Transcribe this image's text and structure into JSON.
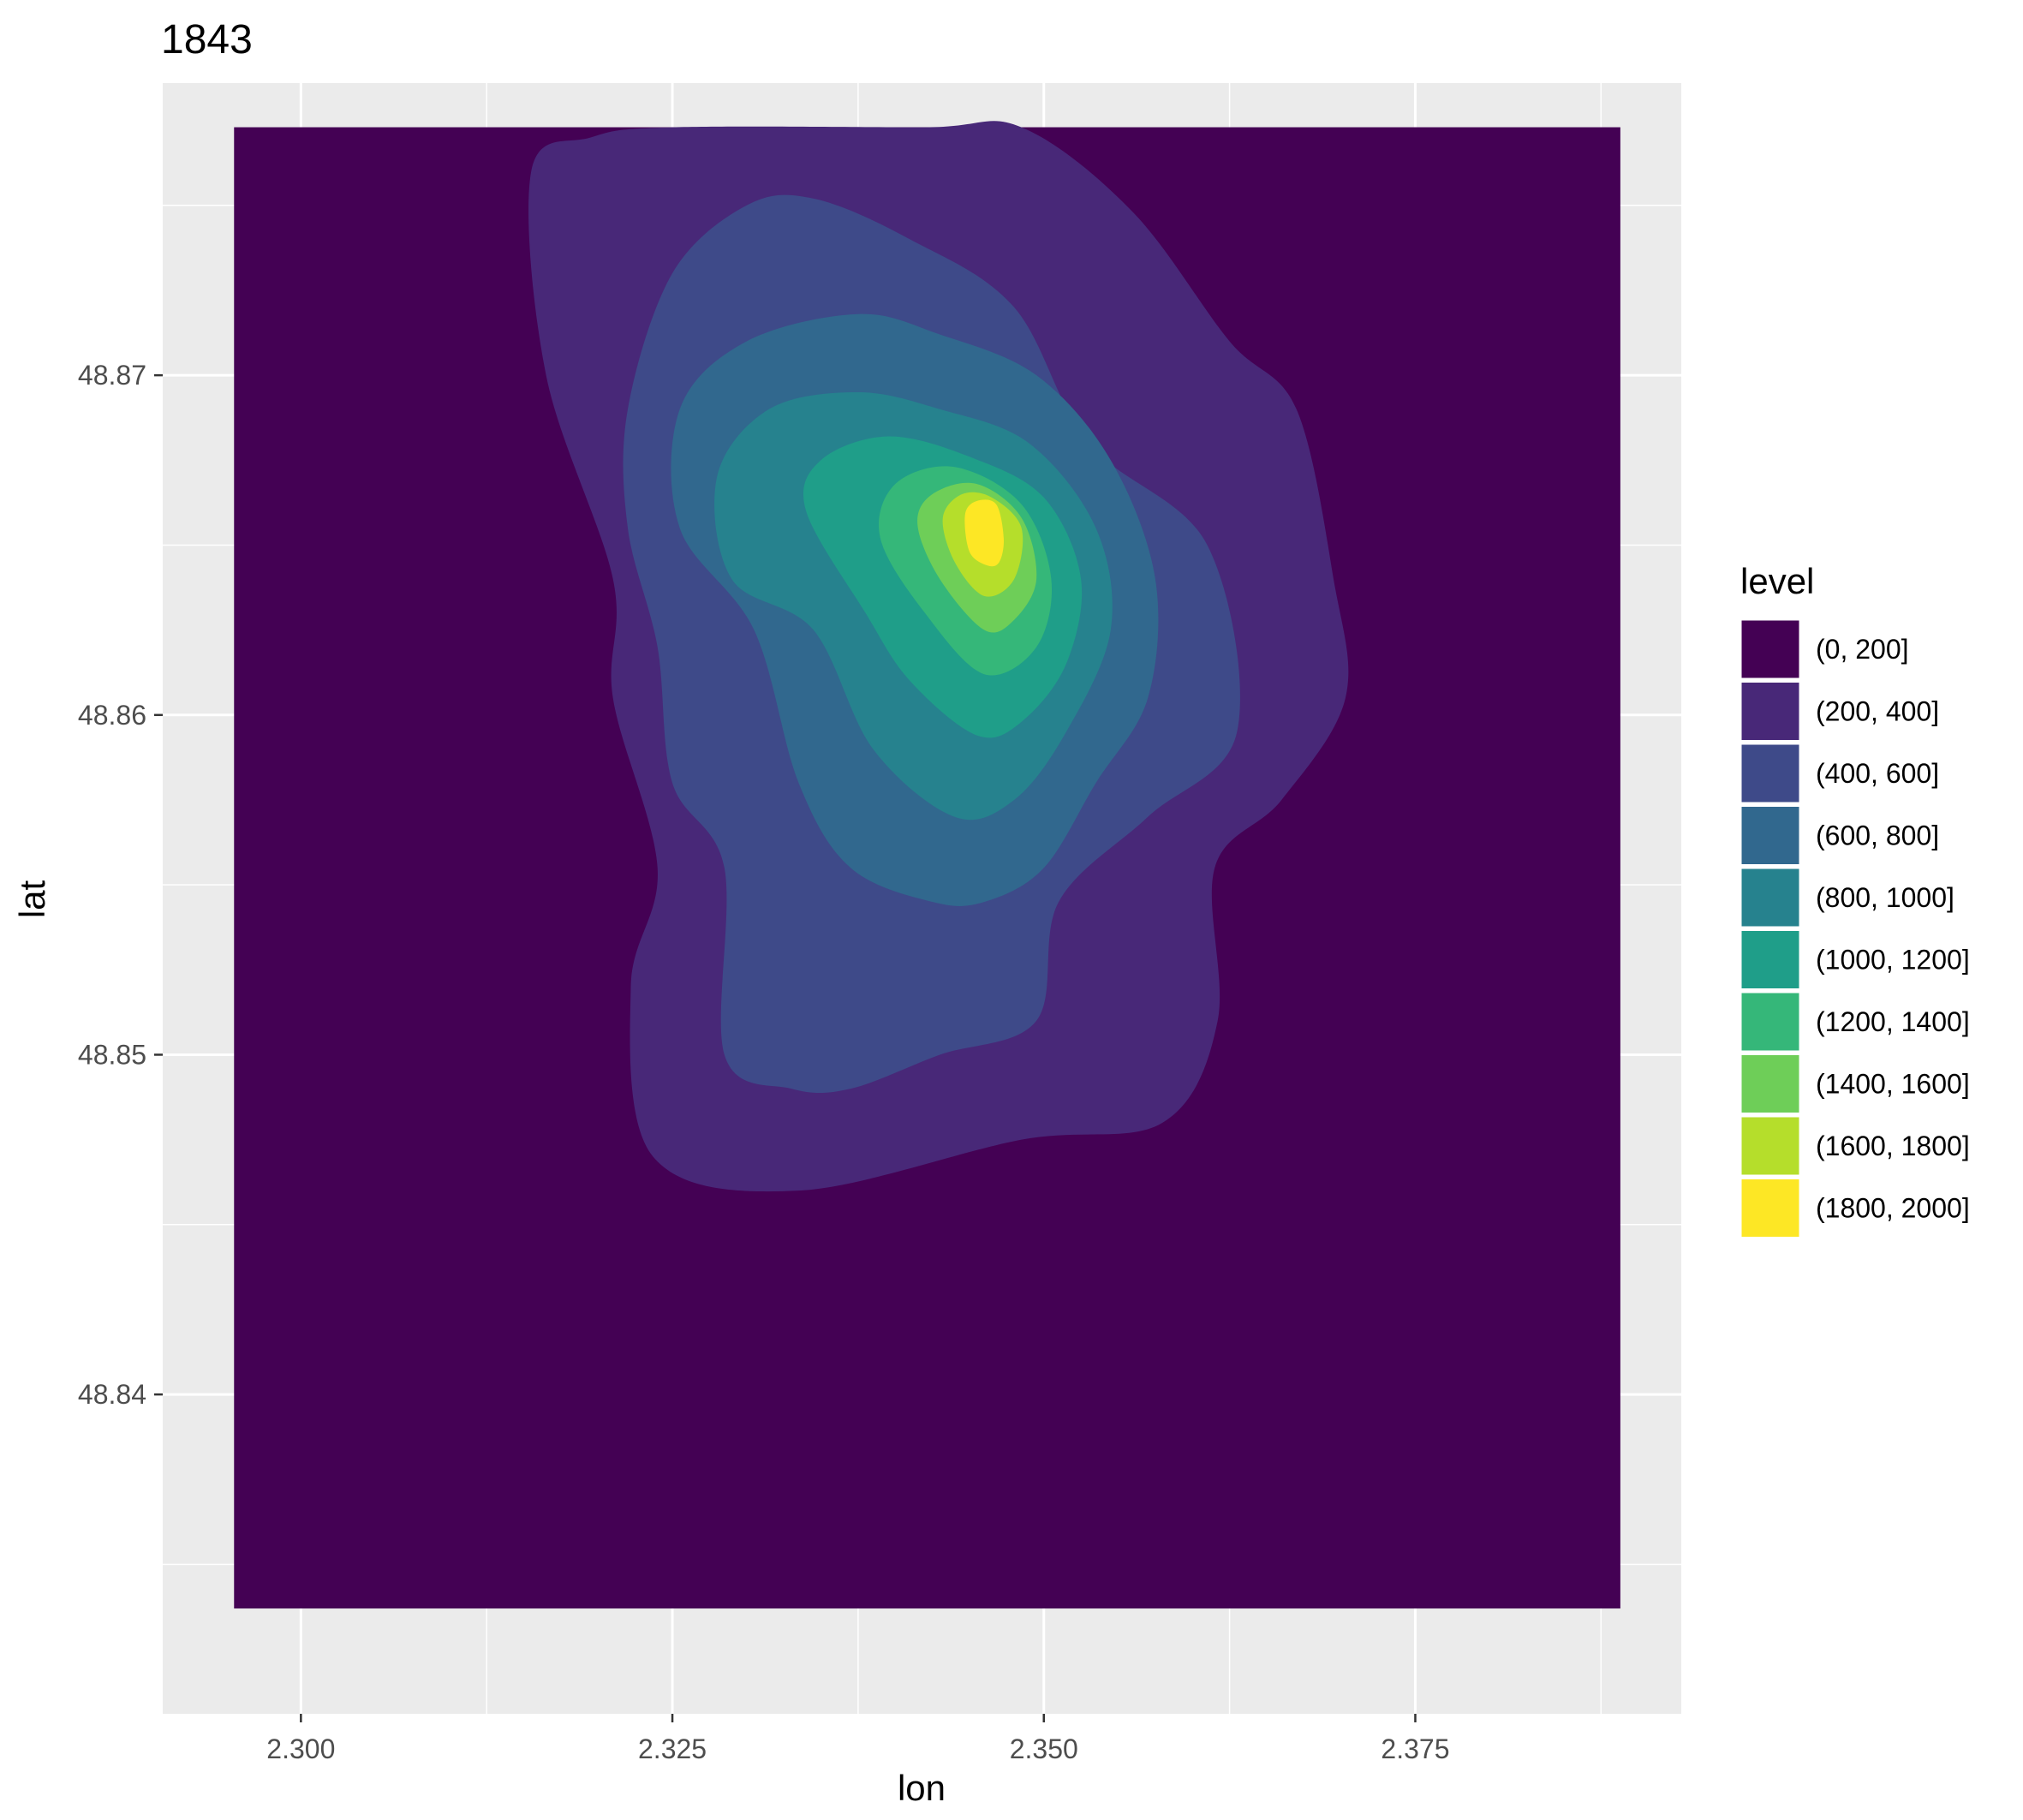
{
  "chart_data": {
    "type": "contour_density",
    "title": "1843",
    "xlabel": "lon",
    "ylabel": "lat",
    "xlim": [
      2.2907,
      2.3929
    ],
    "ylim": [
      48.8306,
      48.8786
    ],
    "x_ticks": [
      2.3,
      2.325,
      2.35,
      2.375
    ],
    "x_tick_labels": [
      "2.300",
      "2.325",
      "2.350",
      "2.375"
    ],
    "y_ticks": [
      48.84,
      48.85,
      48.86,
      48.87
    ],
    "y_tick_labels": [
      "48.84",
      "48.85",
      "48.86",
      "48.87"
    ],
    "grid": true,
    "panel_background": "#ebebeb",
    "legend": {
      "title": "level",
      "position": "right",
      "entries": [
        {
          "label": "(0, 200]",
          "color": "#440154"
        },
        {
          "label": "(200, 400]",
          "color": "#482878"
        },
        {
          "label": "(400, 600]",
          "color": "#3e4a89"
        },
        {
          "label": "(600, 800]",
          "color": "#31688e"
        },
        {
          "label": "(800, 1000]",
          "color": "#26828e"
        },
        {
          "label": "(1000, 1200]",
          "color": "#1f9e89"
        },
        {
          "label": "(1200, 1400]",
          "color": "#35b779"
        },
        {
          "label": "(1400, 1600]",
          "color": "#6ece58"
        },
        {
          "label": "(1600, 1800]",
          "color": "#b5de2b"
        },
        {
          "label": "(1800, 2000]",
          "color": "#fde725"
        }
      ]
    },
    "density_extent": {
      "lon": [
        2.2955,
        2.3888
      ],
      "lat": [
        48.8337,
        48.8773
      ]
    },
    "peak": {
      "lon": 2.3462,
      "lat": 48.8656,
      "level": "(1800, 2000]"
    },
    "contours": [
      {
        "level": "(200, 400]",
        "points": [
          [
            2.3335,
            48.846
          ],
          [
            2.3237,
            48.847
          ],
          [
            2.3222,
            48.852
          ],
          [
            2.324,
            48.8555
          ],
          [
            2.321,
            48.8605
          ],
          [
            2.321,
            48.864
          ],
          [
            2.3165,
            48.87
          ],
          [
            2.3155,
            48.876
          ],
          [
            2.3195,
            48.877
          ],
          [
            2.325,
            48.8773
          ],
          [
            2.342,
            48.8773
          ],
          [
            2.3485,
            48.8773
          ],
          [
            2.356,
            48.8748
          ],
          [
            2.3625,
            48.871
          ],
          [
            2.367,
            48.869
          ],
          [
            2.3695,
            48.864
          ],
          [
            2.3703,
            48.8605
          ],
          [
            2.366,
            48.8575
          ],
          [
            2.3615,
            48.8555
          ],
          [
            2.3617,
            48.851
          ],
          [
            2.358,
            48.848
          ],
          [
            2.3485,
            48.8475
          ]
        ]
      },
      {
        "level": "(400, 600]",
        "points": [
          [
            2.333,
            48.849
          ],
          [
            2.3285,
            48.85
          ],
          [
            2.3285,
            48.8555
          ],
          [
            2.325,
            48.858
          ],
          [
            2.324,
            48.862
          ],
          [
            2.322,
            48.8655
          ],
          [
            2.322,
            48.869
          ],
          [
            2.325,
            48.873
          ],
          [
            2.33,
            48.875
          ],
          [
            2.3345,
            48.8752
          ],
          [
            2.341,
            48.874
          ],
          [
            2.348,
            48.872
          ],
          [
            2.353,
            48.868
          ],
          [
            2.361,
            48.865
          ],
          [
            2.363,
            48.8595
          ],
          [
            2.357,
            48.857
          ],
          [
            2.351,
            48.8545
          ],
          [
            2.3495,
            48.851
          ],
          [
            2.343,
            48.85
          ],
          [
            2.337,
            48.849
          ]
        ]
      },
      {
        "level": "(600, 800]",
        "points": [
          [
            2.3425,
            48.8545
          ],
          [
            2.337,
            48.8555
          ],
          [
            2.3335,
            48.858
          ],
          [
            2.3305,
            48.8625
          ],
          [
            2.3255,
            48.8655
          ],
          [
            2.3255,
            48.869
          ],
          [
            2.33,
            48.871
          ],
          [
            2.3375,
            48.8718
          ],
          [
            2.343,
            48.8712
          ],
          [
            2.3495,
            48.87
          ],
          [
            2.3545,
            48.8675
          ],
          [
            2.3575,
            48.864
          ],
          [
            2.357,
            48.8605
          ],
          [
            2.3535,
            48.858
          ],
          [
            2.35,
            48.8555
          ],
          [
            2.346,
            48.8545
          ]
        ]
      },
      {
        "level": "(800, 1000]",
        "points": [
          [
            2.344,
            48.857
          ],
          [
            2.3385,
            48.859
          ],
          [
            2.3345,
            48.8625
          ],
          [
            2.329,
            48.864
          ],
          [
            2.328,
            48.867
          ],
          [
            2.3315,
            48.869
          ],
          [
            2.3375,
            48.8695
          ],
          [
            2.343,
            48.869
          ],
          [
            2.349,
            48.868
          ],
          [
            2.3535,
            48.8655
          ],
          [
            2.3545,
            48.8625
          ],
          [
            2.3515,
            48.8595
          ],
          [
            2.348,
            48.8575
          ]
        ]
      },
      {
        "level": "(1000, 1200]",
        "points": [
          [
            2.3455,
            48.8594
          ],
          [
            2.341,
            48.861
          ],
          [
            2.338,
            48.863
          ],
          [
            2.334,
            48.866
          ],
          [
            2.335,
            48.8675
          ],
          [
            2.3395,
            48.8682
          ],
          [
            2.345,
            48.8676
          ],
          [
            2.35,
            48.8664
          ],
          [
            2.3525,
            48.864
          ],
          [
            2.3515,
            48.8615
          ],
          [
            2.3485,
            48.8598
          ]
        ]
      },
      {
        "level": "(1200, 1400]",
        "points": [
          [
            2.346,
            48.8612
          ],
          [
            2.342,
            48.863
          ],
          [
            2.339,
            48.8652
          ],
          [
            2.34,
            48.8668
          ],
          [
            2.344,
            48.8673
          ],
          [
            2.3485,
            48.8662
          ],
          [
            2.3505,
            48.864
          ],
          [
            2.3495,
            48.862
          ]
        ]
      },
      {
        "level": "(1400, 1600]",
        "points": [
          [
            2.346,
            48.8625
          ],
          [
            2.343,
            48.864
          ],
          [
            2.3415,
            48.8656
          ],
          [
            2.3425,
            48.8665
          ],
          [
            2.3455,
            48.8668
          ],
          [
            2.3485,
            48.8658
          ],
          [
            2.3495,
            48.864
          ],
          [
            2.348,
            48.8628
          ]
        ]
      },
      {
        "level": "(1600, 1800]",
        "points": [
          [
            2.346,
            48.8635
          ],
          [
            2.344,
            48.8645
          ],
          [
            2.3432,
            48.8658
          ],
          [
            2.3445,
            48.8665
          ],
          [
            2.3465,
            48.8664
          ],
          [
            2.3485,
            48.8655
          ],
          [
            2.348,
            48.864
          ]
        ]
      },
      {
        "level": "(1800, 2000]",
        "points": [
          [
            2.3462,
            48.8644
          ],
          [
            2.345,
            48.8648
          ],
          [
            2.3447,
            48.8659
          ],
          [
            2.3455,
            48.8663
          ],
          [
            2.3468,
            48.8662
          ],
          [
            2.3473,
            48.8652
          ],
          [
            2.347,
            48.8645
          ]
        ]
      }
    ]
  }
}
